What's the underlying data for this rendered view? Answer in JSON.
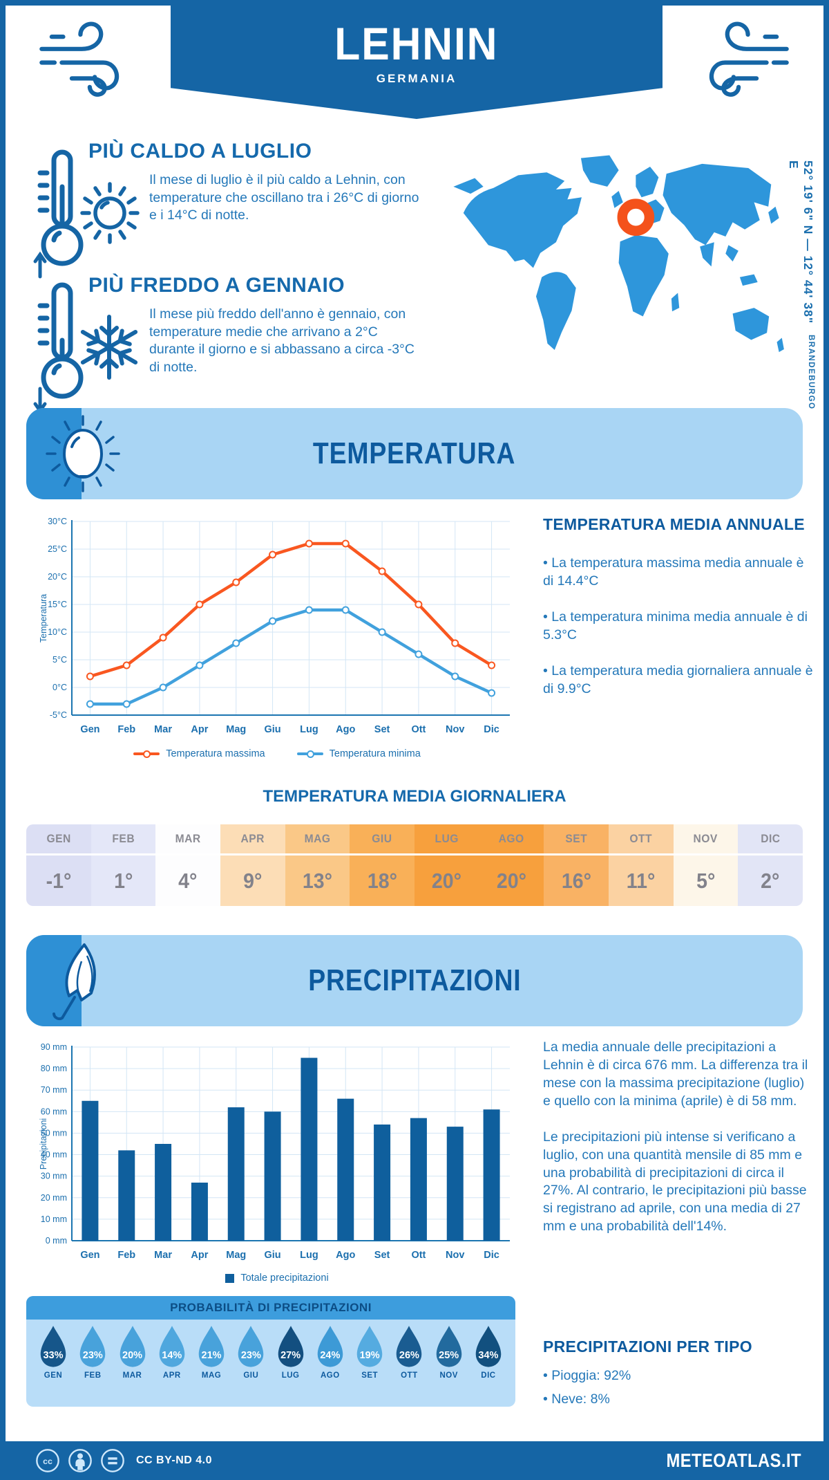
{
  "header": {
    "location": "LEHNIN",
    "country": "GERMANIA",
    "coordinates": "52° 19' 6\" N — 12° 44' 38\" E",
    "region": "BRANDEBURGO"
  },
  "warmest": {
    "title": "PIÙ CALDO A LUGLIO",
    "text": "Il mese di luglio è il più caldo a Lehnin, con temperature che oscillano tra i 26°C di giorno e i 14°C di notte."
  },
  "coldest": {
    "title": "PIÙ FREDDO A GENNAIO",
    "text": "Il mese più freddo dell'anno è gennaio, con temperature medie che arrivano a 2°C durante il giorno e si abbassano a circa -3°C di notte."
  },
  "temperature_section": {
    "banner": "TEMPERATURA",
    "annual": {
      "title": "TEMPERATURA MEDIA ANNUALE",
      "bullets": [
        "• La temperatura massima media annuale è di 14.4°C",
        "• La temperatura minima media annuale è di 5.3°C",
        "• La temperatura media giornaliera annuale è di 9.9°C"
      ]
    },
    "daily": {
      "title": "TEMPERATURA MEDIA GIORNALIERA",
      "months": [
        "GEN",
        "FEB",
        "MAR",
        "APR",
        "MAG",
        "GIU",
        "LUG",
        "AGO",
        "SET",
        "OTT",
        "NOV",
        "DIC"
      ],
      "values": [
        "-1°",
        "1°",
        "4°",
        "9°",
        "13°",
        "18°",
        "20°",
        "20°",
        "16°",
        "11°",
        "5°",
        "2°"
      ],
      "cell_colors": [
        "#dcdff4",
        "#e4e7f8",
        "#fdfdfe",
        "#fcddb6",
        "#fac887",
        "#f9b058",
        "#f7a03d",
        "#f7a03d",
        "#f9b264",
        "#fbd2a2",
        "#fdf6e9",
        "#e2e5f6"
      ]
    }
  },
  "precipitation_section": {
    "banner": "PRECIPITAZIONI",
    "summary": [
      "La media annuale delle precipitazioni a Lehnin è di circa 676 mm. La differenza tra il mese con la massima precipitazione (luglio) e quello con la minima (aprile) è di 58 mm.",
      "Le precipitazioni più intense si verificano a luglio, con una quantità mensile di 85 mm e una probabilità di precipitazioni di circa il 27%. Al contrario, le precipitazioni più basse si registrano ad aprile, con una media di 27 mm e una probabilità dell'14%."
    ],
    "probability": {
      "title": "PROBABILITÀ DI PRECIPITAZIONI",
      "months": [
        "GEN",
        "FEB",
        "MAR",
        "APR",
        "MAG",
        "GIU",
        "LUG",
        "AGO",
        "SET",
        "OTT",
        "NOV",
        "DIC"
      ],
      "values": [
        "33%",
        "23%",
        "20%",
        "14%",
        "21%",
        "23%",
        "27%",
        "24%",
        "19%",
        "26%",
        "25%",
        "34%"
      ],
      "drop_colors": [
        "#16568a",
        "#48a2db",
        "#48a2db",
        "#4fa7de",
        "#48a2db",
        "#48a2db",
        "#134f80",
        "#3d9ad6",
        "#55abe0",
        "#1a5c91",
        "#226a9e",
        "#12507f"
      ]
    },
    "types": {
      "title": "PRECIPITAZIONI PER TIPO",
      "bullets": [
        "• Pioggia: 92%",
        "• Neve: 8%"
      ]
    }
  },
  "footer": {
    "license": "CC BY-ND 4.0",
    "site": "METEOATLAS.IT"
  },
  "icons": {
    "wind": "wind-icon",
    "thermometer_up": "thermometer-up-icon",
    "thermometer_down": "thermometer-down-icon",
    "sun": "sun-icon",
    "snowflake": "snowflake-icon",
    "umbrella": "umbrella-icon",
    "map_marker": "location-marker-icon",
    "droplet": "droplet-icon",
    "cc": "creative-commons-icons"
  },
  "colors": {
    "primary_blue": "#1565a5",
    "heading_blue": "#1569ac",
    "body_blue": "#2478b9",
    "banner_light": "#a9d5f4",
    "banner_cap": "#2e90d5",
    "map_land": "#2e96db",
    "marker_orange": "#f4521b",
    "grid": "#d3e6f5",
    "axis": "#1b75b1"
  },
  "chart_data": [
    {
      "type": "line",
      "title": "Temperatura",
      "categories": [
        "Gen",
        "Feb",
        "Mar",
        "Apr",
        "Mag",
        "Giu",
        "Lug",
        "Ago",
        "Set",
        "Ott",
        "Nov",
        "Dic"
      ],
      "series": [
        {
          "name": "Temperatura massima",
          "color": "#f95720",
          "values": [
            2,
            4,
            9,
            15,
            19,
            24,
            26,
            26,
            21,
            15,
            8,
            4
          ]
        },
        {
          "name": "Temperatura minima",
          "color": "#41a1dd",
          "values": [
            -3,
            -3,
            0,
            4,
            8,
            12,
            14,
            14,
            10,
            6,
            2,
            -1
          ]
        }
      ],
      "xlabel": "",
      "ylabel": "Temperatura",
      "ylim": [
        -5,
        30
      ],
      "ytick_step": 5,
      "ytick_suffix": "°C",
      "grid": true,
      "legend_position": "bottom"
    },
    {
      "type": "bar",
      "title": "Precipitazioni",
      "categories": [
        "Gen",
        "Feb",
        "Mar",
        "Apr",
        "Mag",
        "Giu",
        "Lug",
        "Ago",
        "Set",
        "Ott",
        "Nov",
        "Dic"
      ],
      "series": [
        {
          "name": "Totale precipitazioni",
          "color": "#0f5f9d",
          "values": [
            65,
            42,
            45,
            27,
            62,
            60,
            85,
            66,
            54,
            57,
            53,
            61
          ]
        }
      ],
      "xlabel": "",
      "ylabel": "Precipitazioni",
      "ylim": [
        0,
        90
      ],
      "ytick_step": 10,
      "ytick_suffix": " mm",
      "grid": true,
      "legend_position": "bottom"
    }
  ]
}
